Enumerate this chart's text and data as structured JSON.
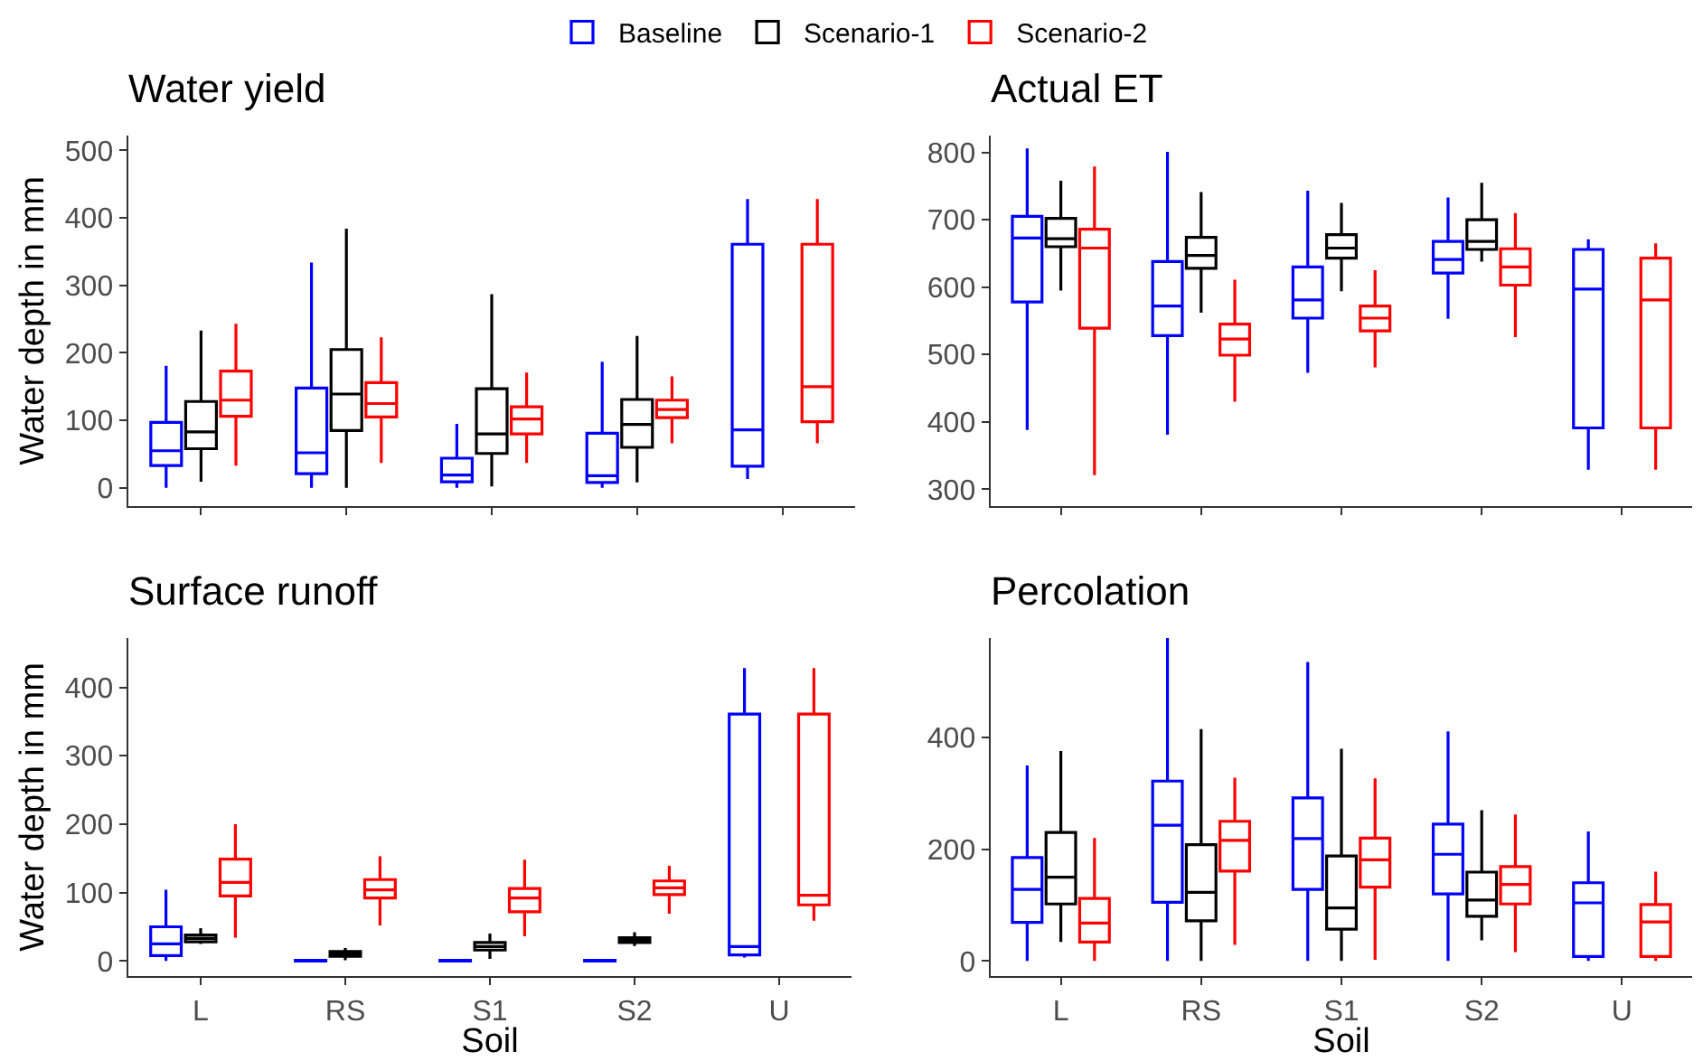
{
  "chart_data": [
    {
      "type": "box",
      "title": "Water yield",
      "ylabel": "Water depth in mm",
      "categories": [
        null,
        null,
        null,
        null,
        null
      ],
      "ylim": [
        -27,
        522
      ],
      "yticks": [
        0,
        100,
        200,
        300,
        400,
        500
      ],
      "grid": false,
      "legend": "top",
      "tick_labels": "y",
      "series": [
        {
          "name": "Baseline",
          "color": "#0000ff",
          "boxes": [
            {
              "low": 0,
              "q1": 33,
              "median": 55,
              "q3": 97,
              "high": 181
            },
            {
              "low": 0,
              "q1": 21,
              "median": 52,
              "q3": 148,
              "high": 334
            },
            {
              "low": 0,
              "q1": 9,
              "median": 19,
              "q3": 44,
              "high": 95
            },
            {
              "low": 0,
              "q1": 8,
              "median": 18,
              "q3": 81,
              "high": 187
            },
            {
              "low": 13,
              "q1": 32,
              "median": 86,
              "q3": 361,
              "high": 428
            }
          ]
        },
        {
          "name": "Scenario-1",
          "color": "#000000",
          "boxes": [
            {
              "low": 9,
              "q1": 58,
              "median": 83,
              "q3": 128,
              "high": 233
            },
            {
              "low": 0,
              "q1": 85,
              "median": 139,
              "q3": 205,
              "high": 384
            },
            {
              "low": 2,
              "q1": 51,
              "median": 80,
              "q3": 147,
              "high": 287
            },
            {
              "low": 8,
              "q1": 60,
              "median": 94,
              "q3": 131,
              "high": 225
            },
            null
          ]
        },
        {
          "name": "Scenario-2",
          "color": "#ff0000",
          "boxes": [
            {
              "low": 33,
              "q1": 106,
              "median": 130,
              "q3": 173,
              "high": 243
            },
            {
              "low": 37,
              "q1": 105,
              "median": 125,
              "q3": 156,
              "high": 223
            },
            {
              "low": 37,
              "q1": 80,
              "median": 102,
              "q3": 120,
              "high": 171
            },
            {
              "low": 66,
              "q1": 104,
              "median": 116,
              "q3": 130,
              "high": 165
            },
            {
              "low": 66,
              "q1": 98,
              "median": 150,
              "q3": 361,
              "high": 428
            }
          ]
        }
      ]
    },
    {
      "type": "box",
      "title": "Actual ET",
      "categories": [
        null,
        null,
        null,
        null,
        null
      ],
      "ylim": [
        275,
        825
      ],
      "yticks": [
        300,
        400,
        500,
        600,
        700,
        800
      ],
      "grid": false,
      "tick_labels": "y",
      "series": [
        {
          "color": "#0000ff",
          "boxes": [
            {
              "low": 388,
              "q1": 578,
              "median": 673,
              "q3": 705,
              "high": 806
            },
            {
              "low": 381,
              "q1": 528,
              "median": 572,
              "q3": 638,
              "high": 801
            },
            {
              "low": 473,
              "q1": 554,
              "median": 581,
              "q3": 630,
              "high": 743
            },
            {
              "low": 553,
              "q1": 621,
              "median": 641,
              "q3": 668,
              "high": 733
            },
            {
              "low": 329,
              "q1": 391,
              "median": 597,
              "q3": 656,
              "high": 671
            }
          ]
        },
        {
          "color": "#000000",
          "boxes": [
            {
              "low": 595,
              "q1": 660,
              "median": 672,
              "q3": 702,
              "high": 758
            },
            {
              "low": 562,
              "q1": 628,
              "median": 647,
              "q3": 674,
              "high": 741
            },
            {
              "low": 594,
              "q1": 643,
              "median": 658,
              "q3": 678,
              "high": 725
            },
            {
              "low": 638,
              "q1": 656,
              "median": 668,
              "q3": 700,
              "high": 755
            },
            null
          ]
        },
        {
          "color": "#ff0000",
          "boxes": [
            {
              "low": 321,
              "q1": 539,
              "median": 658,
              "q3": 686,
              "high": 779
            },
            {
              "low": 430,
              "q1": 499,
              "median": 523,
              "q3": 545,
              "high": 611
            },
            {
              "low": 481,
              "q1": 535,
              "median": 554,
              "q3": 572,
              "high": 625
            },
            {
              "low": 526,
              "q1": 603,
              "median": 630,
              "q3": 657,
              "high": 710
            },
            {
              "low": 329,
              "q1": 391,
              "median": 581,
              "q3": 643,
              "high": 665
            }
          ]
        }
      ]
    },
    {
      "type": "box",
      "title": "Surface runoff",
      "xlabel": "Soil",
      "ylabel": "Water depth in mm",
      "categories": [
        "L",
        "RS",
        "S1",
        "S2",
        "U"
      ],
      "ylim": [
        -22,
        472
      ],
      "yticks": [
        0,
        100,
        200,
        300,
        400
      ],
      "grid": false,
      "series": [
        {
          "color": "#0000ff",
          "boxes": [
            {
              "low": 0,
              "q1": 8,
              "median": 25,
              "q3": 50,
              "high": 104
            },
            {
              "low": 0,
              "q1": 0,
              "median": 0,
              "q3": 1,
              "high": 1
            },
            {
              "low": 0,
              "q1": 0,
              "median": 0,
              "q3": 1,
              "high": 1
            },
            {
              "low": 0,
              "q1": 0,
              "median": 0,
              "q3": 1,
              "high": 1
            },
            {
              "low": 5,
              "q1": 9,
              "median": 21,
              "q3": 361,
              "high": 428
            }
          ]
        },
        {
          "color": "#000000",
          "boxes": [
            {
              "low": 25,
              "q1": 28,
              "median": 33,
              "q3": 38,
              "high": 48
            },
            {
              "low": 1,
              "q1": 7,
              "median": 10,
              "q3": 14,
              "high": 19
            },
            {
              "low": 3,
              "q1": 16,
              "median": 21,
              "q3": 27,
              "high": 40
            },
            {
              "low": 22,
              "q1": 27,
              "median": 30,
              "q3": 34,
              "high": 42
            },
            null
          ]
        },
        {
          "color": "#ff0000",
          "boxes": [
            {
              "low": 34,
              "q1": 95,
              "median": 115,
              "q3": 149,
              "high": 200
            },
            {
              "low": 52,
              "q1": 92,
              "median": 104,
              "q3": 119,
              "high": 153
            },
            {
              "low": 36,
              "q1": 72,
              "median": 92,
              "q3": 106,
              "high": 148
            },
            {
              "low": 69,
              "q1": 97,
              "median": 107,
              "q3": 117,
              "high": 139
            },
            {
              "low": 59,
              "q1": 82,
              "median": 96,
              "q3": 361,
              "high": 428
            }
          ]
        }
      ]
    },
    {
      "type": "box",
      "title": "Percolation",
      "xlabel": "Soil",
      "categories": [
        "L",
        "RS",
        "S1",
        "S2",
        "U"
      ],
      "ylim": [
        -27,
        578
      ],
      "yticks": [
        0,
        200,
        400
      ],
      "grid": false,
      "series": [
        {
          "color": "#0000ff",
          "boxes": [
            {
              "low": 0,
              "q1": 69,
              "median": 128,
              "q3": 185,
              "high": 350
            },
            {
              "low": 0,
              "q1": 105,
              "median": 243,
              "q3": 322,
              "high": 578
            },
            {
              "low": 0,
              "q1": 128,
              "median": 219,
              "q3": 292,
              "high": 535
            },
            {
              "low": 0,
              "q1": 120,
              "median": 191,
              "q3": 245,
              "high": 411
            },
            {
              "low": 0,
              "q1": 8,
              "median": 104,
              "q3": 140,
              "high": 232
            }
          ]
        },
        {
          "color": "#000000",
          "boxes": [
            {
              "low": 34,
              "q1": 102,
              "median": 150,
              "q3": 230,
              "high": 376
            },
            {
              "low": 0,
              "q1": 72,
              "median": 123,
              "q3": 208,
              "high": 415
            },
            {
              "low": 0,
              "q1": 57,
              "median": 95,
              "q3": 188,
              "high": 380
            },
            {
              "low": 37,
              "q1": 80,
              "median": 109,
              "q3": 159,
              "high": 270
            },
            null
          ]
        },
        {
          "color": "#ff0000",
          "boxes": [
            {
              "low": 0,
              "q1": 34,
              "median": 68,
              "q3": 112,
              "high": 220
            },
            {
              "low": 29,
              "q1": 161,
              "median": 216,
              "q3": 250,
              "high": 328
            },
            {
              "low": 2,
              "q1": 132,
              "median": 181,
              "q3": 220,
              "high": 327
            },
            {
              "low": 16,
              "q1": 102,
              "median": 137,
              "q3": 169,
              "high": 262
            },
            {
              "low": 0,
              "q1": 8,
              "median": 70,
              "q3": 101,
              "high": 160
            }
          ]
        }
      ]
    }
  ]
}
